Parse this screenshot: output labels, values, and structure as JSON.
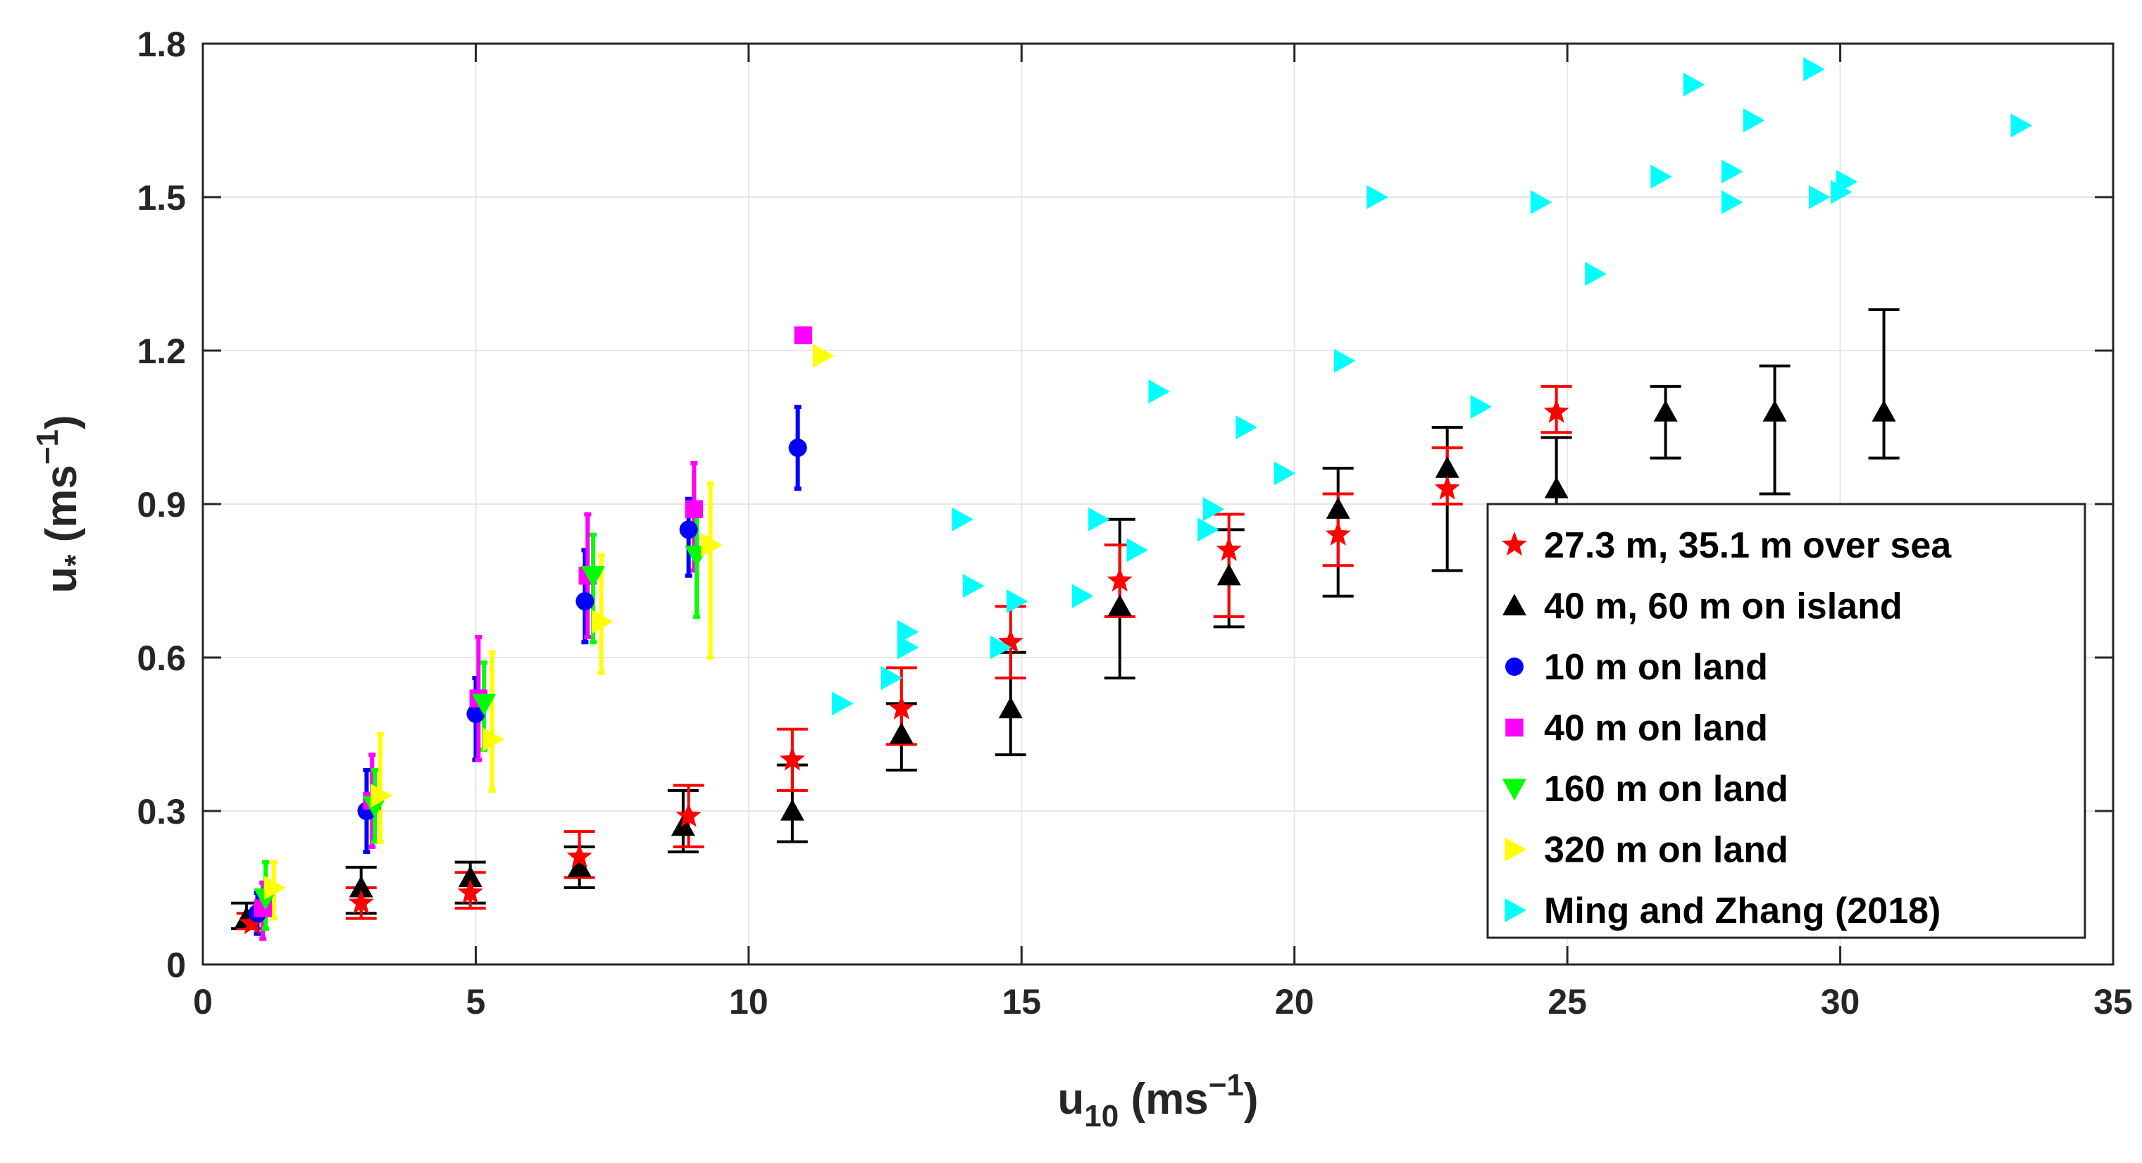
{
  "chart_data": {
    "type": "scatter",
    "title": "",
    "xlabel": "u10 (ms−1)",
    "xlabel_main": "u",
    "xlabel_sub": "10",
    "xlabel_rest": " (ms",
    "xlabel_sup": "−1",
    "xlabel_close": ")",
    "ylabel": "u* (ms−1)",
    "ylabel_main": "u",
    "ylabel_sub": "*",
    "ylabel_rest": " (ms",
    "ylabel_sup": "−1",
    "ylabel_close": ")",
    "xlim": [
      0,
      35
    ],
    "ylim": [
      0,
      1.8
    ],
    "xticks": [
      "0",
      "5",
      "10",
      "15",
      "20",
      "25",
      "30",
      "35"
    ],
    "yticks": [
      "0",
      "0.3",
      "0.6",
      "0.9",
      "1.2",
      "1.5",
      "1.8"
    ],
    "grid": true,
    "legend_position": "bottom-right",
    "series": [
      {
        "name": "27.3 m, 35.1 m over sea",
        "marker": "star",
        "color": "#ff0000",
        "points": [
          {
            "x": 0.9,
            "y": 0.08,
            "lo": 0.07,
            "hi": 0.1
          },
          {
            "x": 2.9,
            "y": 0.12,
            "lo": 0.09,
            "hi": 0.15
          },
          {
            "x": 4.9,
            "y": 0.14,
            "lo": 0.11,
            "hi": 0.18
          },
          {
            "x": 6.9,
            "y": 0.21,
            "lo": 0.17,
            "hi": 0.26
          },
          {
            "x": 8.9,
            "y": 0.29,
            "lo": 0.23,
            "hi": 0.35
          },
          {
            "x": 10.8,
            "y": 0.4,
            "lo": 0.34,
            "hi": 0.46
          },
          {
            "x": 12.8,
            "y": 0.5,
            "lo": 0.43,
            "hi": 0.58
          },
          {
            "x": 14.8,
            "y": 0.63,
            "lo": 0.56,
            "hi": 0.7
          },
          {
            "x": 16.8,
            "y": 0.75,
            "lo": 0.68,
            "hi": 0.82
          },
          {
            "x": 18.8,
            "y": 0.81,
            "lo": 0.68,
            "hi": 0.88
          },
          {
            "x": 20.8,
            "y": 0.84,
            "lo": 0.78,
            "hi": 0.92
          },
          {
            "x": 22.8,
            "y": 0.93,
            "lo": 0.9,
            "hi": 1.01
          },
          {
            "x": 24.8,
            "y": 1.08,
            "lo": 1.04,
            "hi": 1.13
          }
        ]
      },
      {
        "name": "40 m, 60 m on island",
        "marker": "triangle-up",
        "color": "#000000",
        "points": [
          {
            "x": 0.8,
            "y": 0.09,
            "lo": 0.07,
            "hi": 0.12
          },
          {
            "x": 2.9,
            "y": 0.15,
            "lo": 0.1,
            "hi": 0.19
          },
          {
            "x": 4.9,
            "y": 0.17,
            "lo": 0.12,
            "hi": 0.2
          },
          {
            "x": 6.9,
            "y": 0.19,
            "lo": 0.15,
            "hi": 0.23
          },
          {
            "x": 8.8,
            "y": 0.27,
            "lo": 0.22,
            "hi": 0.34
          },
          {
            "x": 10.8,
            "y": 0.3,
            "lo": 0.24,
            "hi": 0.39
          },
          {
            "x": 12.8,
            "y": 0.45,
            "lo": 0.38,
            "hi": 0.51
          },
          {
            "x": 14.8,
            "y": 0.5,
            "lo": 0.41,
            "hi": 0.61
          },
          {
            "x": 16.8,
            "y": 0.7,
            "lo": 0.56,
            "hi": 0.87
          },
          {
            "x": 18.8,
            "y": 0.76,
            "lo": 0.66,
            "hi": 0.85
          },
          {
            "x": 20.8,
            "y": 0.89,
            "lo": 0.72,
            "hi": 0.97
          },
          {
            "x": 22.8,
            "y": 0.97,
            "lo": 0.77,
            "hi": 1.05
          },
          {
            "x": 24.8,
            "y": 0.93,
            "lo": 0.89,
            "hi": 1.03
          },
          {
            "x": 26.8,
            "y": 1.08,
            "lo": 0.99,
            "hi": 1.13
          },
          {
            "x": 28.8,
            "y": 1.08,
            "lo": 0.92,
            "hi": 1.17
          },
          {
            "x": 30.8,
            "y": 1.08,
            "lo": 0.99,
            "hi": 1.28
          }
        ]
      },
      {
        "name": "10 m on land",
        "marker": "circle",
        "color": "#0000ff",
        "points": [
          {
            "x": 1.0,
            "y": 0.1,
            "lo": 0.06,
            "hi": 0.14
          },
          {
            "x": 3.0,
            "y": 0.3,
            "lo": 0.22,
            "hi": 0.38
          },
          {
            "x": 5.0,
            "y": 0.49,
            "lo": 0.4,
            "hi": 0.56
          },
          {
            "x": 7.0,
            "y": 0.71,
            "lo": 0.63,
            "hi": 0.81
          },
          {
            "x": 8.9,
            "y": 0.85,
            "lo": 0.76,
            "hi": 0.91
          },
          {
            "x": 10.9,
            "y": 1.01,
            "lo": 0.93,
            "hi": 1.09
          }
        ]
      },
      {
        "name": "40 m on land",
        "marker": "square",
        "color": "#ff00ff",
        "points": [
          {
            "x": 1.1,
            "y": 0.11,
            "lo": 0.05,
            "hi": 0.16
          },
          {
            "x": 3.1,
            "y": 0.32,
            "lo": 0.23,
            "hi": 0.41
          },
          {
            "x": 5.05,
            "y": 0.52,
            "lo": 0.4,
            "hi": 0.64
          },
          {
            "x": 7.05,
            "y": 0.76,
            "lo": 0.64,
            "hi": 0.88
          },
          {
            "x": 9.0,
            "y": 0.89,
            "lo": 0.77,
            "hi": 0.98
          },
          {
            "x": 11.0,
            "y": 1.23,
            "lo": 1.23,
            "hi": 1.23
          }
        ]
      },
      {
        "name": "160 m on land",
        "marker": "triangle-down",
        "color": "#00ff00",
        "points": [
          {
            "x": 1.15,
            "y": 0.13,
            "lo": 0.07,
            "hi": 0.2
          },
          {
            "x": 3.15,
            "y": 0.31,
            "lo": 0.24,
            "hi": 0.38
          },
          {
            "x": 5.15,
            "y": 0.51,
            "lo": 0.42,
            "hi": 0.59
          },
          {
            "x": 7.15,
            "y": 0.76,
            "lo": 0.63,
            "hi": 0.84
          },
          {
            "x": 9.05,
            "y": 0.8,
            "lo": 0.68,
            "hi": 0.88
          }
        ]
      },
      {
        "name": "320 m on land",
        "marker": "triangle-right",
        "color": "#ffff00",
        "points": [
          {
            "x": 1.3,
            "y": 0.15,
            "lo": 0.09,
            "hi": 0.2
          },
          {
            "x": 3.25,
            "y": 0.33,
            "lo": 0.24,
            "hi": 0.45
          },
          {
            "x": 5.3,
            "y": 0.44,
            "lo": 0.34,
            "hi": 0.61
          },
          {
            "x": 7.3,
            "y": 0.67,
            "lo": 0.57,
            "hi": 0.8
          },
          {
            "x": 9.3,
            "y": 0.82,
            "lo": 0.6,
            "hi": 0.94
          },
          {
            "x": 11.35,
            "y": 1.19,
            "lo": 1.19,
            "hi": 1.19
          }
        ]
      },
      {
        "name": "Ming and Zhang (2018)",
        "marker": "triangle-right",
        "color": "#00ffff",
        "points": [
          {
            "x": 11.7,
            "y": 0.51
          },
          {
            "x": 12.6,
            "y": 0.56
          },
          {
            "x": 12.9,
            "y": 0.62
          },
          {
            "x": 12.9,
            "y": 0.65
          },
          {
            "x": 13.9,
            "y": 0.87
          },
          {
            "x": 14.1,
            "y": 0.74
          },
          {
            "x": 14.6,
            "y": 0.62
          },
          {
            "x": 14.9,
            "y": 0.71
          },
          {
            "x": 16.1,
            "y": 0.72
          },
          {
            "x": 16.4,
            "y": 0.87
          },
          {
            "x": 17.1,
            "y": 0.81
          },
          {
            "x": 17.5,
            "y": 1.12
          },
          {
            "x": 18.4,
            "y": 0.85
          },
          {
            "x": 18.5,
            "y": 0.89
          },
          {
            "x": 19.1,
            "y": 1.05
          },
          {
            "x": 19.8,
            "y": 0.96
          },
          {
            "x": 20.9,
            "y": 1.18
          },
          {
            "x": 21.5,
            "y": 1.5
          },
          {
            "x": 23.4,
            "y": 1.09
          },
          {
            "x": 24.5,
            "y": 1.49
          },
          {
            "x": 25.5,
            "y": 1.35
          },
          {
            "x": 26.7,
            "y": 1.54
          },
          {
            "x": 27.3,
            "y": 1.72
          },
          {
            "x": 28.0,
            "y": 1.49
          },
          {
            "x": 28.0,
            "y": 1.55
          },
          {
            "x": 28.4,
            "y": 1.65
          },
          {
            "x": 29.5,
            "y": 1.75
          },
          {
            "x": 29.6,
            "y": 1.5
          },
          {
            "x": 30.0,
            "y": 1.51
          },
          {
            "x": 30.1,
            "y": 1.53
          },
          {
            "x": 33.3,
            "y": 1.64
          }
        ]
      }
    ]
  }
}
